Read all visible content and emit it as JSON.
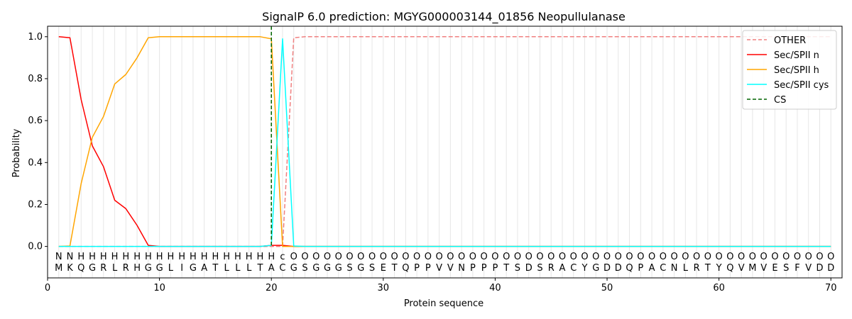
{
  "chart_data": {
    "type": "line",
    "title": "SignalP 6.0 prediction: MGYG000003144_01856 Neopullulanase",
    "xlabel": "Protein sequence",
    "ylabel": "Probability",
    "xlim": [
      0,
      71
    ],
    "ylim": [
      -0.15,
      1.05
    ],
    "xticks": [
      0,
      10,
      20,
      30,
      40,
      50,
      60,
      70
    ],
    "yticks": [
      0.0,
      0.2,
      0.4,
      0.6,
      0.8,
      1.0
    ],
    "ytick_labels": [
      "0.0",
      "0.2",
      "0.4",
      "0.6",
      "0.8",
      "1.0"
    ],
    "legend_position": "top-right",
    "sequence": [
      "M",
      "K",
      "Q",
      "G",
      "R",
      "L",
      "R",
      "H",
      "G",
      "G",
      "L",
      "I",
      "G",
      "A",
      "T",
      "L",
      "L",
      "L",
      "T",
      "A",
      "C",
      "G",
      "S",
      "G",
      "G",
      "G",
      "S",
      "G",
      "S",
      "E",
      "T",
      "Q",
      "P",
      "P",
      "V",
      "V",
      "N",
      "P",
      "P",
      "P",
      "T",
      "S",
      "D",
      "S",
      "R",
      "A",
      "C",
      "Y",
      "G",
      "D",
      "D",
      "Q",
      "P",
      "A",
      "C",
      "N",
      "L",
      "R",
      "T",
      "Y",
      "Q",
      "V",
      "M",
      "V",
      "E",
      "S",
      "F",
      "V",
      "D",
      "D"
    ],
    "labels": [
      "N",
      "N",
      "H",
      "H",
      "H",
      "H",
      "H",
      "H",
      "H",
      "H",
      "H",
      "H",
      "H",
      "H",
      "H",
      "H",
      "H",
      "H",
      "H",
      "H",
      "c",
      "O",
      "O",
      "O",
      "O",
      "O",
      "O",
      "O",
      "O",
      "O",
      "O",
      "O",
      "O",
      "O",
      "O",
      "O",
      "O",
      "O",
      "O",
      "O",
      "O",
      "O",
      "O",
      "O",
      "O",
      "O",
      "O",
      "O",
      "O",
      "O",
      "O",
      "O",
      "O",
      "O",
      "O",
      "O",
      "O",
      "O",
      "O",
      "O",
      "O",
      "O",
      "O",
      "O",
      "O",
      "O",
      "O",
      "O",
      "O",
      "O"
    ],
    "label_colors": {
      "N": "#ff0000",
      "H": "#ffa500",
      "c": "#00ffff",
      "O": "#808080"
    },
    "cs_position": 20,
    "series": [
      {
        "name": "OTHER",
        "color": "#f08080",
        "dash": true,
        "values": [
          0,
          0,
          0,
          0,
          0,
          0,
          0,
          0,
          0,
          0,
          0,
          0,
          0,
          0,
          0,
          0,
          0,
          0,
          0,
          0,
          0,
          0.995,
          1,
          1,
          1,
          1,
          1,
          1,
          1,
          1,
          1,
          1,
          1,
          1,
          1,
          1,
          1,
          1,
          1,
          1,
          1,
          1,
          1,
          1,
          1,
          1,
          1,
          1,
          1,
          1,
          1,
          1,
          1,
          1,
          1,
          1,
          1,
          1,
          1,
          1,
          1,
          1,
          1,
          1,
          1,
          1,
          1,
          1,
          1,
          1
        ]
      },
      {
        "name": "Sec/SPII n",
        "color": "#ff0000",
        "dash": false,
        "values": [
          1.0,
          0.995,
          0.7,
          0.48,
          0.38,
          0.22,
          0.18,
          0.1,
          0.005,
          0,
          0,
          0,
          0,
          0,
          0,
          0,
          0,
          0,
          0,
          0.005,
          0.005,
          0,
          0,
          0,
          0,
          0,
          0,
          0,
          0,
          0,
          0,
          0,
          0,
          0,
          0,
          0,
          0,
          0,
          0,
          0,
          0,
          0,
          0,
          0,
          0,
          0,
          0,
          0,
          0,
          0,
          0,
          0,
          0,
          0,
          0,
          0,
          0,
          0,
          0,
          0,
          0,
          0,
          0,
          0,
          0,
          0,
          0,
          0,
          0,
          0
        ]
      },
      {
        "name": "Sec/SPII h",
        "color": "#ffa500",
        "dash": false,
        "values": [
          0,
          0.002,
          0.3,
          0.52,
          0.62,
          0.775,
          0.82,
          0.9,
          0.995,
          1,
          1,
          1,
          1,
          1,
          1,
          1,
          1,
          1,
          1,
          0.99,
          0.0,
          0,
          0,
          0,
          0,
          0,
          0,
          0,
          0,
          0,
          0,
          0,
          0,
          0,
          0,
          0,
          0,
          0,
          0,
          0,
          0,
          0,
          0,
          0,
          0,
          0,
          0,
          0,
          0,
          0,
          0,
          0,
          0,
          0,
          0,
          0,
          0,
          0,
          0,
          0,
          0,
          0,
          0,
          0,
          0,
          0,
          0,
          0,
          0,
          0
        ]
      },
      {
        "name": "Sec/SPII cys",
        "color": "#00ffff",
        "dash": false,
        "values": [
          0,
          0,
          0,
          0,
          0,
          0,
          0,
          0,
          0,
          0,
          0,
          0,
          0,
          0,
          0,
          0,
          0,
          0,
          0,
          0.005,
          0.99,
          0.002,
          0,
          0,
          0,
          0,
          0,
          0,
          0,
          0,
          0,
          0,
          0,
          0,
          0,
          0,
          0,
          0,
          0,
          0,
          0,
          0,
          0,
          0,
          0,
          0,
          0,
          0,
          0,
          0,
          0,
          0,
          0,
          0,
          0,
          0,
          0,
          0,
          0,
          0,
          0,
          0,
          0,
          0,
          0,
          0,
          0,
          0,
          0,
          0
        ]
      }
    ],
    "cs_legend": {
      "name": "CS",
      "color": "#006400"
    }
  }
}
